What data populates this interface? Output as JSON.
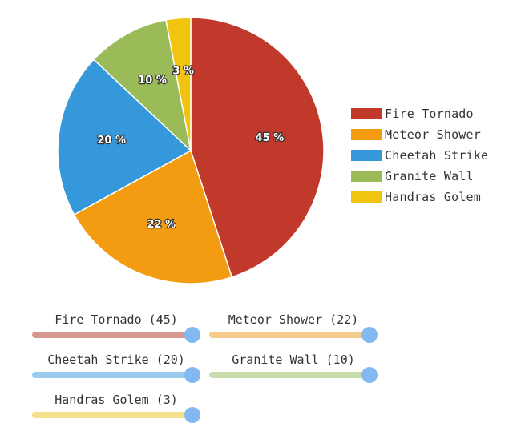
{
  "chart_data": {
    "type": "pie",
    "title": "",
    "legend_position": "right",
    "slices": [
      {
        "name": "Fire Tornado",
        "value": 45,
        "percent_label": "45 %",
        "color": "#c0392b",
        "track_color": "#d7968f"
      },
      {
        "name": "Meteor Shower",
        "value": 22,
        "percent_label": "22 %",
        "color": "#f39c12",
        "track_color": "#f5ca8a"
      },
      {
        "name": "Cheetah Strike",
        "value": 20,
        "percent_label": "20 %",
        "color": "#3498db",
        "track_color": "#9ccbee"
      },
      {
        "name": "Granite Wall",
        "value": 10,
        "percent_label": "10 %",
        "color": "#9bbb59",
        "track_color": "#cbdcad"
      },
      {
        "name": "Handras Golem",
        "value": 3,
        "percent_label": "3 %",
        "color": "#f1c40f",
        "track_color": "#f3df8c"
      }
    ]
  },
  "sliders": [
    {
      "label": "Fire Tornado (45)",
      "value": 1.0
    },
    {
      "label": "Meteor Shower (22)",
      "value": 1.0
    },
    {
      "label": "Cheetah Strike (20)",
      "value": 1.0
    },
    {
      "label": "Granite Wall (10)",
      "value": 1.0
    },
    {
      "label": "Handras Golem (3)",
      "value": 1.0
    }
  ],
  "slider_knob_color": "#84b8f0"
}
